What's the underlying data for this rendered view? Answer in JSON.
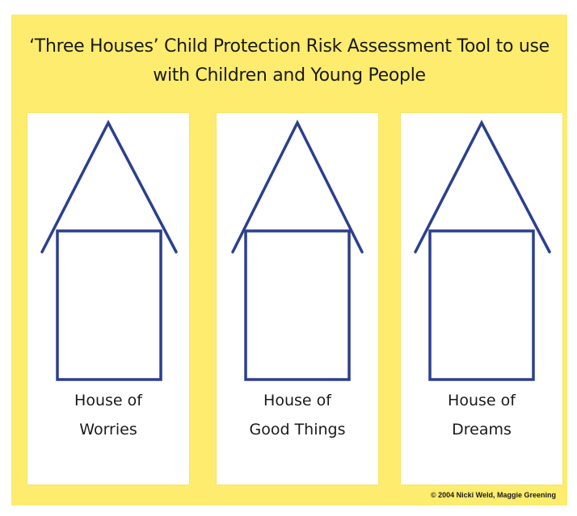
{
  "colors": {
    "background": "#fdec6e",
    "card": "#ffffff",
    "house_line": "#2b3f8f"
  },
  "title": {
    "line1": "‘Three Houses’ Child Protection Risk Assessment Tool to use",
    "line2": "with Children and Young People"
  },
  "houses": [
    {
      "label_line1": "House of",
      "label_line2": "Worries",
      "icon": "house-outline-icon"
    },
    {
      "label_line1": "House of",
      "label_line2": "Good Things",
      "icon": "house-outline-icon"
    },
    {
      "label_line1": "House of",
      "label_line2": "Dreams",
      "icon": "house-outline-icon"
    }
  ],
  "copyright": "© 2004 Nicki Weld, Maggie Greening"
}
